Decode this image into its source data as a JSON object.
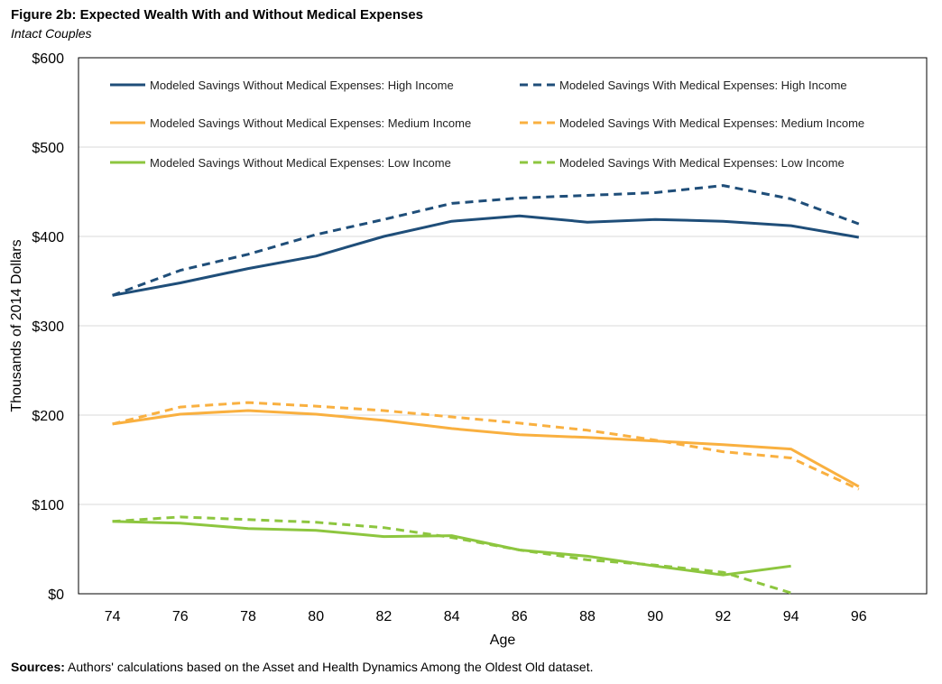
{
  "figure": {
    "title": "Figure 2b: Expected Wealth With and Without Medical Expenses",
    "subtitle": "Intact Couples",
    "sources_label": "Sources:",
    "sources_text": " Authors' calculations based on the Asset and Health Dynamics Among the Oldest Old dataset."
  },
  "chart_data": {
    "type": "line",
    "xlabel": "Age",
    "ylabel": "Thousands of 2014 Dollars",
    "x": [
      74,
      76,
      78,
      80,
      82,
      84,
      86,
      88,
      90,
      92,
      94,
      96
    ],
    "x_tick_labels": [
      "74",
      "76",
      "78",
      "80",
      "82",
      "84",
      "86",
      "88",
      "90",
      "92",
      "94",
      "96"
    ],
    "xlim": [
      73,
      98
    ],
    "ylim": [
      0,
      600
    ],
    "y_ticks": [
      0,
      100,
      200,
      300,
      400,
      500,
      600
    ],
    "y_tick_labels": [
      "$0",
      "$100",
      "$200",
      "$300",
      "$400",
      "$500",
      "$600"
    ],
    "grid": "horizontal",
    "legend_position": "top",
    "colors": {
      "high": "#1f4e79",
      "medium": "#f9b040",
      "low": "#8dc63f",
      "grid": "#d9d9d9"
    },
    "series": [
      {
        "name": "Modeled Savings Without Medical Expenses: High Income",
        "color": "#1f4e79",
        "dashed": false,
        "values": [
          334,
          348,
          364,
          378,
          400,
          417,
          423,
          416,
          419,
          417,
          412,
          399
        ]
      },
      {
        "name": "Modeled Savings With Medical Expenses: High Income",
        "color": "#1f4e79",
        "dashed": true,
        "values": [
          334,
          362,
          380,
          402,
          419,
          437,
          443,
          446,
          449,
          457,
          442,
          414
        ]
      },
      {
        "name": "Modeled Savings Without Medical Expenses: Medium Income",
        "color": "#f9b040",
        "dashed": false,
        "values": [
          190,
          201,
          205,
          201,
          194,
          185,
          178,
          175,
          171,
          167,
          162,
          120
        ]
      },
      {
        "name": "Modeled Savings With Medical Expenses: Medium Income",
        "color": "#f9b040",
        "dashed": true,
        "values": [
          190,
          209,
          214,
          210,
          205,
          198,
          191,
          183,
          172,
          159,
          152,
          117
        ]
      },
      {
        "name": "Modeled Savings Without Medical Expenses: Low Income",
        "color": "#8dc63f",
        "dashed": false,
        "values": [
          81,
          79,
          73,
          71,
          64,
          65,
          49,
          42,
          31,
          21,
          31,
          null
        ]
      },
      {
        "name": "Modeled Savings With Medical Expenses: Low Income",
        "color": "#8dc63f",
        "dashed": true,
        "values": [
          81,
          86,
          83,
          80,
          74,
          63,
          49,
          38,
          32,
          24,
          1,
          null
        ]
      }
    ]
  }
}
